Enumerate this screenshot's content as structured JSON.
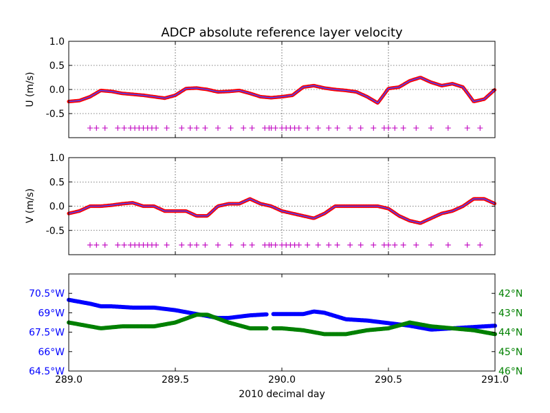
{
  "chart_data": [
    {
      "type": "scatter",
      "title": "ADCP absolute reference layer velocity",
      "ylabel": "U (m/s)",
      "xlim": [
        289.0,
        291.0
      ],
      "ylim": [
        -1.0,
        1.0
      ],
      "yticks": [
        "1.0",
        "0.5",
        "0.0",
        "-0.5"
      ],
      "ytick_values": [
        1.0,
        0.5,
        0.0,
        -0.5
      ],
      "grid": true,
      "colors": {
        "points": "#ff0000",
        "smoothed": "#4444ff",
        "flags": "#bf00bf"
      },
      "series": [
        {
          "style": "red-dots-blue-line",
          "x": [
            289.0,
            289.05,
            289.1,
            289.15,
            289.2,
            289.25,
            289.3,
            289.35,
            289.4,
            289.45,
            289.5,
            289.55,
            289.6,
            289.65,
            289.7,
            289.75,
            289.8,
            289.85,
            289.9,
            289.95,
            290.0,
            290.05,
            290.1,
            290.15,
            290.2,
            290.25,
            290.3,
            290.35,
            290.4,
            290.45,
            290.5,
            290.55,
            290.6,
            290.65,
            290.7,
            290.75,
            290.8,
            290.85,
            290.9,
            290.95,
            291.0
          ],
          "y": [
            -0.25,
            -0.23,
            -0.15,
            -0.02,
            -0.04,
            -0.08,
            -0.1,
            -0.12,
            -0.15,
            -0.18,
            -0.12,
            0.02,
            0.03,
            0.0,
            -0.05,
            -0.04,
            -0.02,
            -0.08,
            -0.15,
            -0.17,
            -0.15,
            -0.12,
            0.05,
            0.08,
            0.03,
            0.0,
            -0.02,
            -0.05,
            -0.15,
            -0.28,
            0.02,
            0.05,
            0.18,
            0.25,
            0.15,
            0.08,
            0.12,
            0.05,
            -0.25,
            -0.2,
            0.0
          ]
        },
        {
          "style": "magenta-plus",
          "y_constant": -0.8,
          "x": [
            289.1,
            289.13,
            289.17,
            289.23,
            289.26,
            289.29,
            289.31,
            289.33,
            289.35,
            289.37,
            289.39,
            289.41,
            289.46,
            289.53,
            289.57,
            289.6,
            289.64,
            289.7,
            289.76,
            289.82,
            289.86,
            289.92,
            289.94,
            289.95,
            289.97,
            290.0,
            290.02,
            290.04,
            290.06,
            290.08,
            290.12,
            290.17,
            290.22,
            290.26,
            290.32,
            290.37,
            290.43,
            290.48,
            290.5,
            290.53,
            290.57,
            290.63,
            290.7,
            290.78,
            290.87,
            290.93
          ]
        }
      ]
    },
    {
      "type": "scatter",
      "ylabel": "V (m/s)",
      "xlim": [
        289.0,
        291.0
      ],
      "ylim": [
        -1.0,
        1.0
      ],
      "yticks": [
        "1.0",
        "0.5",
        "0.0",
        "-0.5"
      ],
      "ytick_values": [
        1.0,
        0.5,
        0.0,
        -0.5
      ],
      "grid": true,
      "colors": {
        "points": "#ff0000",
        "smoothed": "#4444ff",
        "flags": "#bf00bf"
      },
      "series": [
        {
          "style": "red-dots-blue-line",
          "x": [
            289.0,
            289.05,
            289.1,
            289.15,
            289.2,
            289.25,
            289.3,
            289.35,
            289.4,
            289.45,
            289.5,
            289.55,
            289.6,
            289.65,
            289.7,
            289.75,
            289.8,
            289.85,
            289.9,
            289.95,
            290.0,
            290.05,
            290.1,
            290.15,
            290.2,
            290.25,
            290.3,
            290.35,
            290.4,
            290.45,
            290.5,
            290.55,
            290.6,
            290.65,
            290.7,
            290.75,
            290.8,
            290.85,
            290.9,
            290.95,
            291.0
          ],
          "y": [
            -0.15,
            -0.1,
            0.0,
            0.0,
            0.02,
            0.05,
            0.07,
            0.0,
            0.0,
            -0.1,
            -0.1,
            -0.1,
            -0.2,
            -0.2,
            0.0,
            0.05,
            0.05,
            0.15,
            0.05,
            0.0,
            -0.1,
            -0.15,
            -0.2,
            -0.25,
            -0.15,
            0.0,
            0.0,
            0.0,
            0.0,
            0.0,
            -0.05,
            -0.2,
            -0.3,
            -0.35,
            -0.25,
            -0.15,
            -0.1,
            0.0,
            0.15,
            0.15,
            0.05
          ]
        },
        {
          "style": "magenta-plus",
          "y_constant": -0.8,
          "x": [
            289.1,
            289.13,
            289.17,
            289.23,
            289.26,
            289.29,
            289.31,
            289.33,
            289.35,
            289.37,
            289.39,
            289.41,
            289.46,
            289.53,
            289.57,
            289.6,
            289.64,
            289.7,
            289.76,
            289.82,
            289.86,
            289.92,
            289.94,
            289.95,
            289.97,
            290.0,
            290.02,
            290.04,
            290.06,
            290.08,
            290.12,
            290.17,
            290.22,
            290.26,
            290.32,
            290.37,
            290.43,
            290.48,
            290.5,
            290.53,
            290.57,
            290.63,
            290.7,
            290.78,
            290.87,
            290.93
          ]
        }
      ]
    },
    {
      "type": "line",
      "xlabel": "2010 decimal day",
      "xlim": [
        289.0,
        291.0
      ],
      "xticks": [
        "289.0",
        "289.5",
        "290.0",
        "290.5",
        "291.0"
      ],
      "xtick_values": [
        289.0,
        289.5,
        290.0,
        290.5,
        291.0
      ],
      "grid": false,
      "left_axis": {
        "color": "#0000ff",
        "ylim": [
          -64.5,
          -72.0
        ],
        "yticks": [
          "64.5°W",
          "66°W",
          "67.5°W",
          "69°W",
          "70.5°W"
        ],
        "ytick_values": [
          -64.5,
          -66.0,
          -67.5,
          -69.0,
          -70.5
        ]
      },
      "right_axis": {
        "color": "#008000",
        "ylim": [
          46.0,
          41.0
        ],
        "yticks": [
          "46°N",
          "45°N",
          "44°N",
          "43°N",
          "42°N"
        ],
        "ytick_values": [
          46.0,
          45.0,
          44.0,
          43.0,
          42.0
        ]
      },
      "series": [
        {
          "axis": "left",
          "color": "#0000ff",
          "x": [
            289.0,
            289.1,
            289.15,
            289.2,
            289.3,
            289.4,
            289.5,
            289.6,
            289.7,
            289.75,
            289.85,
            289.95,
            290.0,
            290.1,
            290.15,
            290.2,
            290.3,
            290.4,
            290.5,
            290.6,
            290.7,
            290.8,
            290.9,
            291.0
          ],
          "y": [
            -70.0,
            -69.7,
            -69.5,
            -69.5,
            -69.4,
            -69.4,
            -69.2,
            -68.9,
            -68.6,
            -68.6,
            -68.8,
            -68.9,
            -68.9,
            -68.9,
            -69.1,
            -69.0,
            -68.5,
            -68.4,
            -68.2,
            -68.0,
            -67.7,
            -67.8,
            -67.9,
            -68.0
          ]
        },
        {
          "axis": "right",
          "color": "#008000",
          "x": [
            289.0,
            289.1,
            289.15,
            289.25,
            289.4,
            289.5,
            289.6,
            289.65,
            289.75,
            289.85,
            289.95,
            290.0,
            290.1,
            290.2,
            290.3,
            290.4,
            290.5,
            290.6,
            290.7,
            290.8,
            290.9,
            291.0
          ],
          "y": [
            43.5,
            43.7,
            43.8,
            43.7,
            43.7,
            43.5,
            43.1,
            43.1,
            43.5,
            43.8,
            43.8,
            43.8,
            43.9,
            44.1,
            44.1,
            43.9,
            43.8,
            43.5,
            43.7,
            43.8,
            43.9,
            44.1
          ]
        }
      ]
    }
  ]
}
